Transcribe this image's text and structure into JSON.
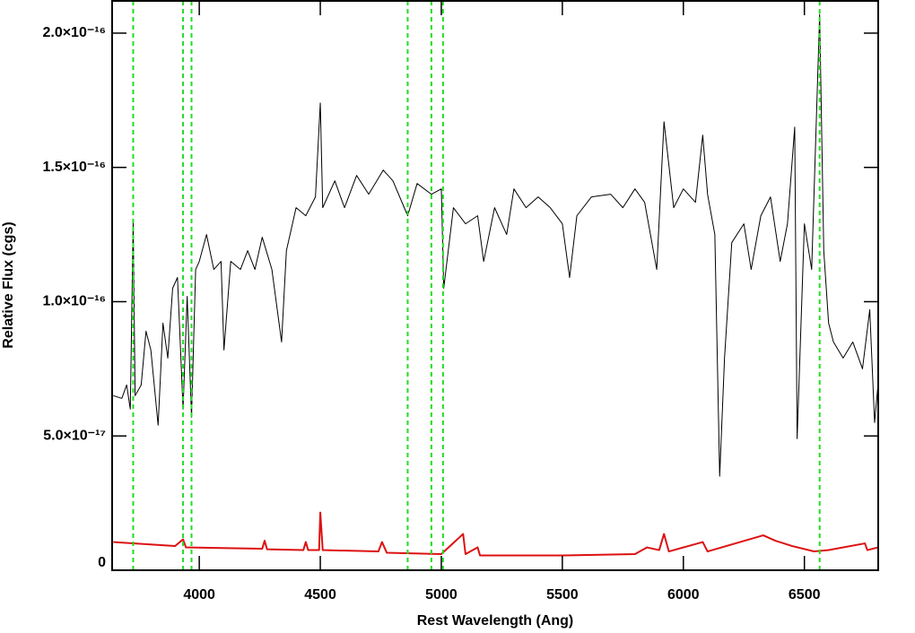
{
  "chart_data": {
    "type": "line",
    "xlabel": "Rest Wavelength (Ang)",
    "ylabel": "Relative Flux (cgs)",
    "xlim": [
      3640,
      6805
    ],
    "ylim": [
      0,
      2.12e-16
    ],
    "xticks": [
      4000,
      4500,
      5000,
      5500,
      6000,
      6500
    ],
    "yticks": [
      0,
      {
        "value": 5e-17,
        "label": "5.0×10⁻¹⁷"
      },
      {
        "value": 1e-16,
        "label": "1.0×10⁻¹⁶"
      },
      {
        "value": 1.5e-16,
        "label": "1.5×10⁻¹⁶"
      },
      {
        "value": 2e-16,
        "label": "2.0×10⁻¹⁶"
      }
    ],
    "vlines": [
      3727,
      3933,
      3968,
      4861,
      4959,
      5007,
      6563
    ],
    "vline_color": "#22dd22",
    "series": [
      {
        "color": "#000000",
        "x": [
          3645,
          3680,
          3700,
          3715,
          3727,
          3735,
          3760,
          3780,
          3800,
          3830,
          3850,
          3870,
          3890,
          3910,
          3933,
          3950,
          3968,
          3985,
          4000,
          4030,
          4060,
          4090,
          4102,
          4130,
          4170,
          4200,
          4230,
          4260,
          4300,
          4340,
          4360,
          4400,
          4440,
          4480,
          4500,
          4510,
          4560,
          4600,
          4650,
          4700,
          4760,
          4800,
          4861,
          4900,
          4959,
          5000,
          5010,
          5050,
          5100,
          5150,
          5175,
          5220,
          5270,
          5300,
          5350,
          5400,
          5450,
          5500,
          5530,
          5560,
          5620,
          5700,
          5750,
          5800,
          5840,
          5890,
          5920,
          5960,
          6000,
          6050,
          6080,
          6100,
          6130,
          6150,
          6170,
          6200,
          6250,
          6280,
          6320,
          6360,
          6400,
          6430,
          6460,
          6470,
          6500,
          6530,
          6563,
          6580,
          6600,
          6620,
          6660,
          6700,
          6740,
          6770,
          6790,
          6804
        ],
        "values": [
          6.5e-17,
          6.4e-17,
          6.9e-17,
          6e-17,
          1.3e-16,
          6.5e-17,
          6.9e-17,
          8.9e-17,
          8.2e-17,
          5.4e-17,
          9.2e-17,
          7.9e-17,
          1.05e-16,
          1.09e-16,
          6e-17,
          1.02e-16,
          5.7e-17,
          1.12e-16,
          1.15e-16,
          1.25e-16,
          1.12e-16,
          1.15e-16,
          8.2e-17,
          1.15e-16,
          1.12e-16,
          1.19e-16,
          1.12e-16,
          1.24e-16,
          1.12e-16,
          8.5e-17,
          1.19e-16,
          1.35e-16,
          1.32e-16,
          1.39e-16,
          1.74e-16,
          1.35e-16,
          1.45e-16,
          1.35e-16,
          1.47e-16,
          1.4e-16,
          1.49e-16,
          1.45e-16,
          1.32e-16,
          1.44e-16,
          1.4e-16,
          1.42e-16,
          1.05e-16,
          1.35e-16,
          1.29e-16,
          1.32e-16,
          1.15e-16,
          1.35e-16,
          1.25e-16,
          1.42e-16,
          1.35e-16,
          1.39e-16,
          1.35e-16,
          1.29e-16,
          1.09e-16,
          1.32e-16,
          1.39e-16,
          1.4e-16,
          1.35e-16,
          1.42e-16,
          1.37e-16,
          1.12e-16,
          1.67e-16,
          1.35e-16,
          1.42e-16,
          1.37e-16,
          1.62e-16,
          1.4e-16,
          1.25e-16,
          3.5e-17,
          7.9e-17,
          1.22e-16,
          1.29e-16,
          1.12e-16,
          1.32e-16,
          1.39e-16,
          1.15e-16,
          1.29e-16,
          1.65e-16,
          4.9e-17,
          1.29e-16,
          1.12e-16,
          2.07e-16,
          1.19e-16,
          9.2e-17,
          8.5e-17,
          7.9e-17,
          8.5e-17,
          7.5e-17,
          9.7e-17,
          5.5e-17,
          6.9e-17
        ]
      },
      {
        "color": "#dd1111",
        "x": [
          3645,
          3900,
          3933,
          3945,
          4260,
          4270,
          4280,
          4430,
          4440,
          4450,
          4495,
          4500,
          4510,
          4740,
          4755,
          4775,
          5000,
          5090,
          5100,
          5150,
          5160,
          5500,
          5800,
          5850,
          5900,
          5920,
          5940,
          6080,
          6100,
          6330,
          6380,
          6450,
          6540,
          6600,
          6750,
          6760,
          6804
        ],
        "values": [
          1.05e-17,
          9e-18,
          1.15e-17,
          8.5e-18,
          8e-18,
          1.1e-17,
          7.8e-18,
          7.5e-18,
          1.05e-17,
          7.5e-18,
          7.5e-18,
          2.15e-17,
          7.5e-18,
          7e-18,
          1.05e-17,
          6.5e-18,
          6e-18,
          1.35e-17,
          6e-18,
          8.5e-18,
          5.5e-18,
          5.5e-18,
          6e-18,
          8.5e-18,
          7.5e-18,
          1.35e-17,
          7e-18,
          1.05e-17,
          7e-18,
          1.3e-17,
          1.1e-17,
          9e-18,
          7e-18,
          7.5e-18,
          1e-17,
          7.5e-18,
          8.5e-18
        ]
      }
    ]
  }
}
